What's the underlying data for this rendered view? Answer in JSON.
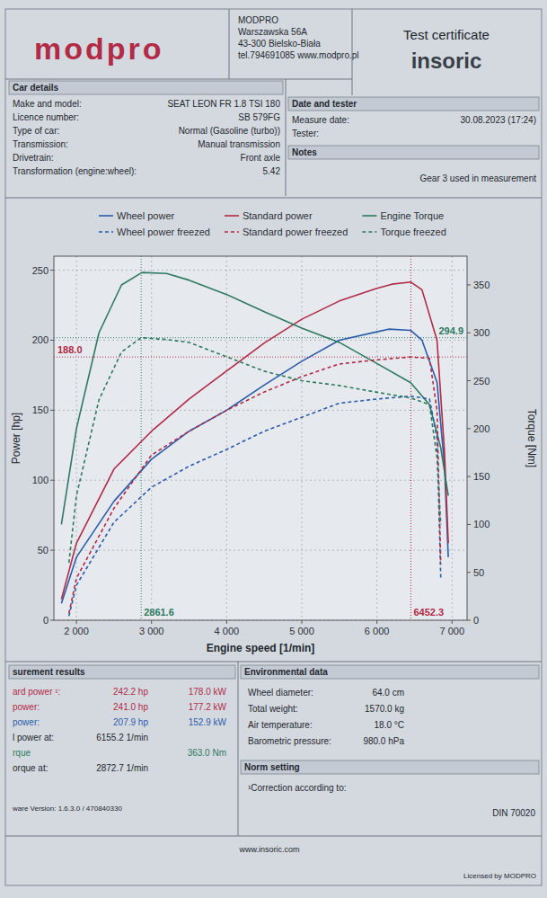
{
  "header": {
    "logo": "modpro",
    "company": [
      "MODPRO",
      "Warszawska 56A",
      "43-300 Bielsko-Biała",
      "tel.794691085 www.modpro.pl"
    ],
    "certificate": "Test certificate",
    "brand": "insoric"
  },
  "car_details": {
    "title": "Car details",
    "rows": [
      {
        "label": "Make and model:",
        "value": "SEAT LEON FR 1.8 TSI 180"
      },
      {
        "label": "Licence number:",
        "value": "SB 579FG"
      },
      {
        "label": "Type of car:",
        "value": "Normal (Gasoline (turbo))"
      },
      {
        "label": "Transmission:",
        "value": "Manual transmission"
      },
      {
        "label": "Drivetrain:",
        "value": "Front axle"
      },
      {
        "label": "Transformation (engine:wheel):",
        "value": "5.42"
      }
    ]
  },
  "date_tester": {
    "title": "Date and tester",
    "rows": [
      {
        "label": "Measure date:",
        "value": "30.08.2023 (17:24)"
      },
      {
        "label": "Tester:"
      }
    ]
  },
  "notes": {
    "title": "Notes",
    "text": "Gear 3 used in measurement"
  },
  "chart_data": {
    "type": "line",
    "x_label": "Engine speed [1/min]",
    "y_label": "Power [hp]",
    "y2_label": "Torque [Nm]",
    "xlim": [
      1700,
      7200
    ],
    "xticks": [
      {
        "value": 2000,
        "label": "2 000"
      },
      {
        "value": 3000,
        "label": "3 000"
      },
      {
        "value": 4000,
        "label": "4 000"
      },
      {
        "value": 5000,
        "label": "5 000"
      },
      {
        "value": 6000,
        "label": "6 000"
      },
      {
        "value": 7000,
        "label": "7 000"
      }
    ],
    "ylim": [
      0,
      260
    ],
    "yticks": [
      0,
      50,
      100,
      150,
      200,
      250
    ],
    "y2lim": [
      0,
      380
    ],
    "y2ticks": [
      0,
      50,
      100,
      150,
      200,
      250,
      300,
      350
    ],
    "grid": true,
    "legend": "top",
    "series": [
      {
        "name": "Wheel power",
        "color": "#2a5caa",
        "line_style": "solid",
        "x": [
          1800,
          2000,
          2500,
          3000,
          3500,
          4000,
          4500,
          5000,
          5500,
          6000,
          6155.2,
          6450,
          6600,
          6800,
          6900,
          6950
        ],
        "values": [
          12,
          45,
          85,
          115,
          135,
          150,
          168,
          185,
          200,
          206,
          207.9,
          207,
          200,
          170,
          110,
          45
        ]
      },
      {
        "name": "Standard power",
        "color": "#b22a46",
        "line_style": "solid",
        "x": [
          1800,
          2000,
          2500,
          3000,
          3500,
          4000,
          4500,
          5000,
          5500,
          6000,
          6200,
          6452.3,
          6600,
          6800,
          6900,
          6950
        ],
        "values": [
          15,
          55,
          108,
          135,
          158,
          178,
          198,
          215,
          228,
          237,
          240,
          241.5,
          236,
          200,
          120,
          55
        ]
      },
      {
        "name": "Engine Torque",
        "color": "#2f7a5f",
        "line_style": "solid",
        "axis": "y2",
        "x": [
          1800,
          2000,
          2300,
          2600,
          2872.7,
          3200,
          3500,
          4000,
          4500,
          5000,
          5500,
          6000,
          6450,
          6700,
          6850,
          6950
        ],
        "values": [
          100,
          200,
          300,
          350,
          363,
          362,
          355,
          340,
          322,
          305,
          290,
          268,
          248,
          225,
          180,
          130
        ]
      },
      {
        "name": "Wheel power freezed",
        "color": "#2a5caa",
        "line_style": "dashed",
        "x": [
          1900,
          2000,
          2500,
          3000,
          3500,
          4000,
          4500,
          5000,
          5500,
          6000,
          6452.3,
          6700,
          6800,
          6850
        ],
        "values": [
          3,
          25,
          70,
          95,
          110,
          122,
          135,
          145,
          155,
          158,
          160,
          158,
          130,
          30
        ]
      },
      {
        "name": "Standard power freezed",
        "color": "#b22a46",
        "line_style": "dashed",
        "x": [
          1900,
          2000,
          2500,
          3000,
          3500,
          4000,
          4500,
          5000,
          5500,
          6000,
          6452.3,
          6700,
          6800,
          6850
        ],
        "values": [
          5,
          30,
          80,
          118,
          135,
          150,
          163,
          174,
          183,
          186,
          188,
          187,
          150,
          40
        ]
      },
      {
        "name": "Torque freezed",
        "color": "#2f7a5f",
        "line_style": "dashed",
        "axis": "y2",
        "x": [
          1900,
          2000,
          2300,
          2600,
          2861.6,
          3200,
          3500,
          4000,
          4500,
          5000,
          5500,
          6000,
          6452.3,
          6700,
          6800,
          6850
        ],
        "values": [
          60,
          130,
          230,
          280,
          294.9,
          293,
          290,
          275,
          260,
          250,
          245,
          238,
          232,
          225,
          170,
          100
        ]
      }
    ],
    "annotations": [
      {
        "label": "188.0",
        "y": 188.0,
        "color": "#b22a46"
      },
      {
        "label": "294.9",
        "y": 294.9,
        "axis": "y2",
        "color": "#2f7a5f"
      },
      {
        "label": "2861.6",
        "x": 2861.6,
        "color": "#2f7a5f"
      },
      {
        "label": "6452.3",
        "x": 6452.3,
        "color": "#b22a46"
      }
    ]
  },
  "results": {
    "title": "surement results",
    "rows": [
      {
        "label": "ard power ¹:",
        "cells": [
          "242.2 hp",
          "178.0 kW"
        ],
        "color": "#b22a46"
      },
      {
        "label": "power:",
        "cells": [
          "241.0 hp",
          "177.2 kW"
        ],
        "color": "#b22a46"
      },
      {
        "label": "power:",
        "cells": [
          "207.9 hp",
          "152.9 kW"
        ],
        "color": "#2a5caa"
      },
      {
        "label": "l power at:",
        "cells": [
          "6155.2 1/min",
          null
        ]
      },
      {
        "label": "rque",
        "cells": [
          null,
          "363.0 Nm"
        ],
        "color": "#2f7a5f"
      },
      {
        "label": "orque at:",
        "cells": [
          "2872.7 1/min",
          null
        ]
      }
    ]
  },
  "environment": {
    "title": "Environmental data",
    "rows": [
      {
        "label": "Wheel diameter:",
        "value": "64.0 cm"
      },
      {
        "label": "Total weight:",
        "value": "1570.0 kg"
      },
      {
        "label": "Air temperature:",
        "value": "18.0 °C"
      },
      {
        "label": "Barometric pressure:",
        "value": "980.0 hPa"
      }
    ]
  },
  "norm": {
    "title": "Norm setting",
    "label": "¹Correction according to:",
    "value": "DIN 70020"
  },
  "software": "ware Version: 1.6.3.0 / 470840330",
  "footer": {
    "url": "www.insoric.com",
    "license": "Licensed by MODPRO"
  }
}
